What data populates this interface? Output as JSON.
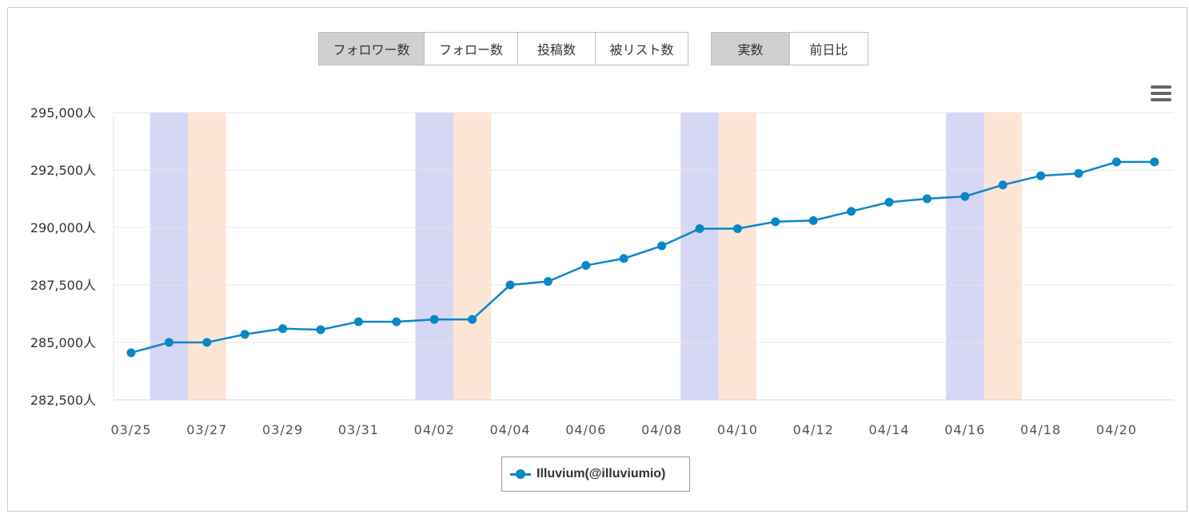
{
  "metric_buttons": [
    {
      "label": "フォロワー数",
      "active": true
    },
    {
      "label": "フォロー数",
      "active": false
    },
    {
      "label": "投稿数",
      "active": false
    },
    {
      "label": "被リスト数",
      "active": false
    }
  ],
  "mode_buttons": [
    {
      "label": "実数",
      "active": true
    },
    {
      "label": "前日比",
      "active": false
    }
  ],
  "menu_icon": "hamburger-menu-icon",
  "chart_data": {
    "type": "line",
    "x": [
      "03/25",
      "03/26",
      "03/27",
      "03/28",
      "03/29",
      "03/30",
      "03/31",
      "04/01",
      "04/02",
      "04/03",
      "04/04",
      "04/05",
      "04/06",
      "04/07",
      "04/08",
      "04/09",
      "04/10",
      "04/11",
      "04/12",
      "04/13",
      "04/14",
      "04/15",
      "04/16",
      "04/17",
      "04/18",
      "04/19",
      "04/20",
      "04/21"
    ],
    "x_tick_labels": [
      "03/25",
      "03/27",
      "03/29",
      "03/31",
      "04/02",
      "04/04",
      "04/06",
      "04/08",
      "04/10",
      "04/12",
      "04/14",
      "04/16",
      "04/18",
      "04/20"
    ],
    "series": [
      {
        "name": "Illuvium(@illuviumio)",
        "color": "#0a87c6",
        "values": [
          284550,
          285000,
          285000,
          285350,
          285600,
          285550,
          285900,
          285900,
          286000,
          286000,
          287500,
          287650,
          288350,
          288650,
          289200,
          289950,
          289950,
          290250,
          290300,
          290700,
          291100,
          291250,
          291350,
          291850,
          292250,
          292350,
          292850,
          292850
        ]
      }
    ],
    "ylim": [
      282500,
      295000
    ],
    "y_ticks": [
      282500,
      285000,
      287500,
      290000,
      292500,
      295000
    ],
    "y_tick_labels": [
      "282,500人",
      "285,000人",
      "287,500人",
      "290,000人",
      "292,500人",
      "295,000人"
    ],
    "weekend_bands": [
      {
        "saturday": "03/26",
        "sunday": "03/27"
      },
      {
        "saturday": "04/02",
        "sunday": "04/03"
      },
      {
        "saturday": "04/09",
        "sunday": "04/10"
      },
      {
        "saturday": "04/16",
        "sunday": "04/17"
      }
    ],
    "colors": {
      "saturday_band": "#d6d6f5",
      "sunday_band": "#fde5d5",
      "grid": "#e6e6e6",
      "axis": "#ccd6eb"
    },
    "grid": true,
    "legend_position": "bottom-center"
  }
}
